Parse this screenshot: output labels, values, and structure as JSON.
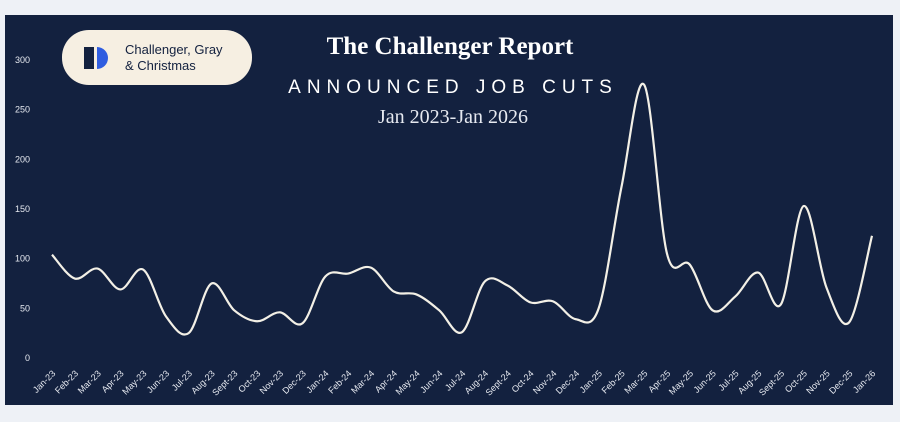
{
  "logo": [
    "Challenger, Gray",
    "& Christmas"
  ],
  "chart_data": {
    "type": "line",
    "title": "The Challenger Report",
    "subtitle": "ANNOUNCED JOB CUTS",
    "period": "Jan 2023-Jan 2026",
    "categories": [
      "Jan-23",
      "Feb-23",
      "Mar-23",
      "Apr-23",
      "May-23",
      "Jun-23",
      "Jul-23",
      "Aug-23",
      "Sept-23",
      "Oct-23",
      "Nov-23",
      "Dec-23",
      "Jan-24",
      "Feb-24",
      "Mar-24",
      "Apr-24",
      "May-24",
      "Jun-24",
      "Jul-24",
      "Aug-24",
      "Sept-24",
      "Oct-24",
      "Nov-24",
      "Dec-24",
      "Jan-25",
      "Feb-25",
      "Mar-25",
      "Apr-25",
      "May-25",
      "Jun-25",
      "Jul-25",
      "Aug-25",
      "Sept-25",
      "Oct-25",
      "Nov-25",
      "Dec-25",
      "Jan-26"
    ],
    "values": [
      104,
      80,
      90,
      69,
      89,
      42,
      25,
      75,
      48,
      37,
      46,
      35,
      82,
      85,
      91,
      67,
      64,
      48,
      26,
      77,
      73,
      56,
      57,
      39,
      50,
      172,
      275,
      105,
      94,
      48,
      62,
      86,
      54,
      153,
      71,
      36,
      123
    ],
    "color": "#f3f0e6",
    "ylim": [
      0,
      300
    ],
    "yticks": [
      0,
      50,
      100,
      150,
      200,
      250,
      300
    ],
    "grid": false
  }
}
